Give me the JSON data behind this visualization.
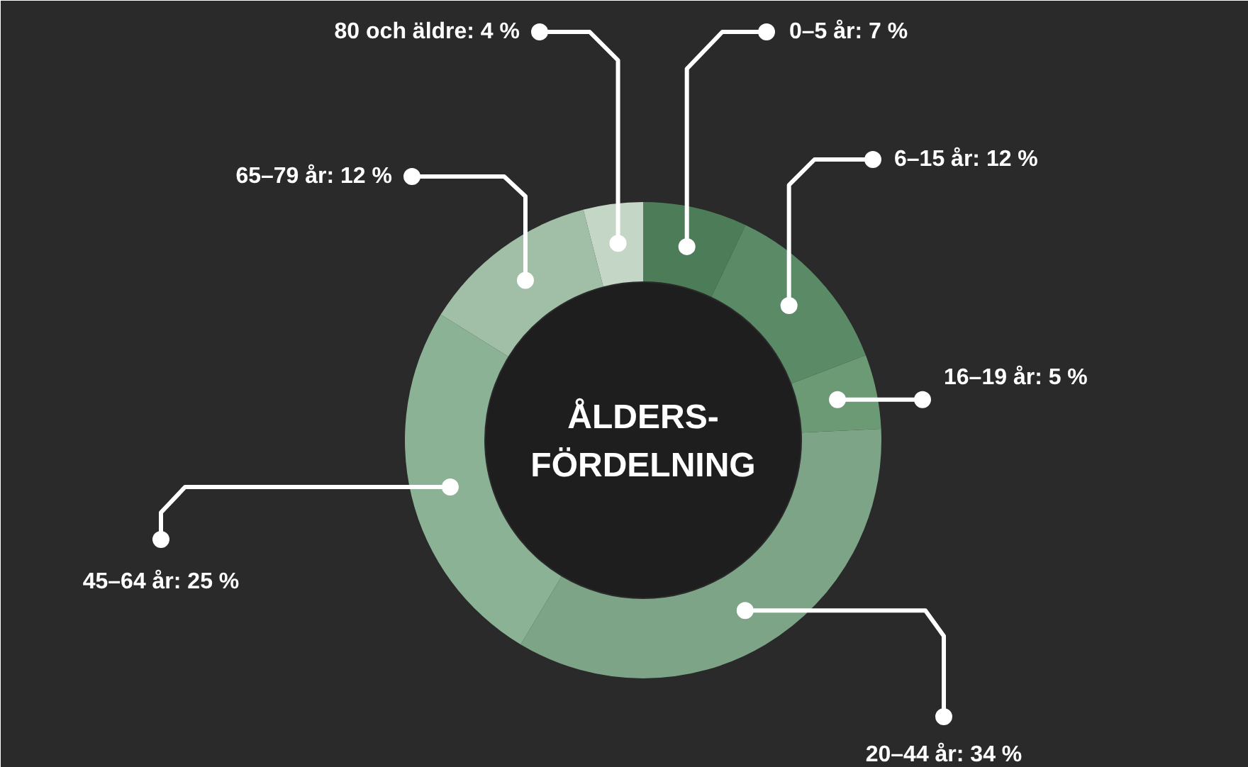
{
  "chart_data": {
    "type": "donut",
    "title": "ÅLDERS-\nFÖRDELNING",
    "categories": [
      "0–5 år",
      "6–15 år",
      "16–19 år",
      "20–44 år",
      "45–64 år",
      "65–79 år",
      "80 och äldre"
    ],
    "values": [
      7,
      12,
      5,
      34,
      25,
      12,
      4
    ],
    "value_labels": [
      "7 %",
      "12 %",
      "5 %",
      "34 %",
      "25 %",
      "12 %",
      "4 %"
    ],
    "colors": [
      "#4d7c59",
      "#5b8a66",
      "#6b9a75",
      "#7ea487",
      "#8cb295",
      "#a1bfa6",
      "#c4d6c6"
    ]
  }
}
